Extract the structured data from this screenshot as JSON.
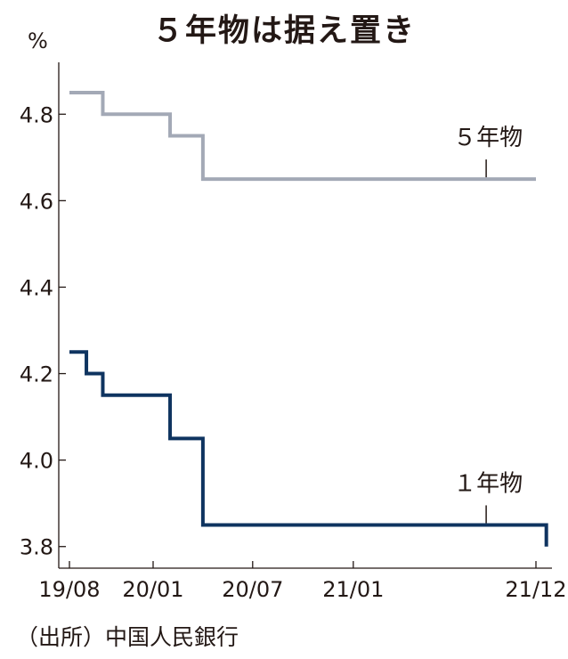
{
  "chart_data": {
    "type": "line",
    "title": "５年物は据え置き",
    "ylabel": "%",
    "ylim": [
      3.75,
      4.92
    ],
    "yticks": [
      "3.8",
      "4.0",
      "4.2",
      "4.4",
      "4.6",
      "4.8"
    ],
    "xlim": [
      "2019-08-01",
      "2021-12-20"
    ],
    "xticks": [
      {
        "date": "2019-08-01",
        "label": "19/08"
      },
      {
        "date": "2020-01-01",
        "label": "20/01"
      },
      {
        "date": "2020-07-01",
        "label": "20/07"
      },
      {
        "date": "2021-01-01",
        "label": "21/01"
      },
      {
        "date": "2021-12-01",
        "label": "21/12"
      }
    ],
    "step": true,
    "grid": false,
    "series": [
      {
        "name": "５年物",
        "color": "#a3a9b6",
        "points": [
          {
            "x": "2019-08-01",
            "y": 4.85
          },
          {
            "x": "2019-10-01",
            "y": 4.8
          },
          {
            "x": "2020-02-01",
            "y": 4.75
          },
          {
            "x": "2020-04-01",
            "y": 4.65
          },
          {
            "x": "2021-12-01",
            "y": 4.65
          }
        ]
      },
      {
        "name": "１年物",
        "color": "#0f3460",
        "points": [
          {
            "x": "2019-08-01",
            "y": 4.25
          },
          {
            "x": "2019-09-01",
            "y": 4.2
          },
          {
            "x": "2019-10-01",
            "y": 4.15
          },
          {
            "x": "2020-02-01",
            "y": 4.05
          },
          {
            "x": "2020-04-01",
            "y": 3.85
          },
          {
            "x": "2021-12-01",
            "y": 3.85
          },
          {
            "x": "2021-12-20",
            "y": 3.8
          }
        ]
      }
    ],
    "annotations": [
      {
        "series": "５年物",
        "text": "５年物",
        "x": "2021-09-01"
      },
      {
        "series": "１年物",
        "text": "１年物",
        "x": "2021-09-01"
      }
    ],
    "source": "（出所）中国人民銀行"
  }
}
